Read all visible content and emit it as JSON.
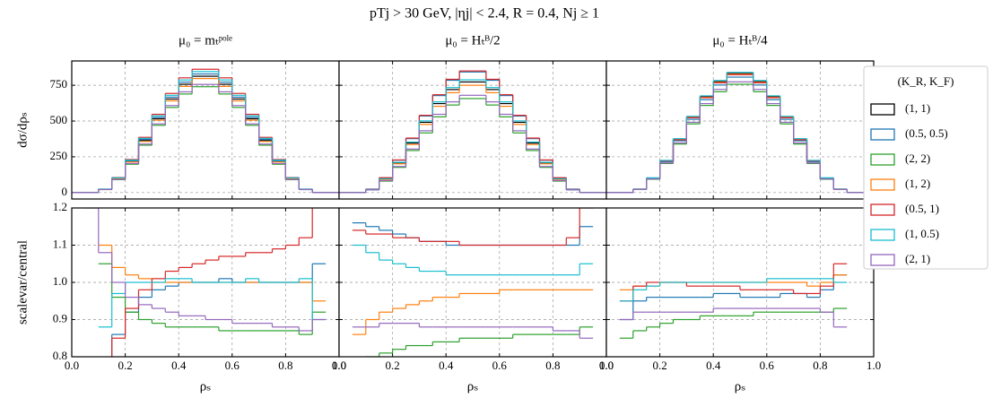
{
  "chart_data": {
    "type": "step",
    "title": "pTj > 30 GeV, |ηj| < 2.4, R = 0.4, Nj ≥ 1",
    "legend_title": "(K_R, K_F)",
    "series": [
      {
        "name": "(1, 1)",
        "color": "#000000"
      },
      {
        "name": "(0.5, 0.5)",
        "color": "#1f77b4"
      },
      {
        "name": "(2, 2)",
        "color": "#2ca02c"
      },
      {
        "name": "(1, 2)",
        "color": "#ff7f0e"
      },
      {
        "name": "(0.5, 1)",
        "color": "#d62728"
      },
      {
        "name": "(1, 0.5)",
        "color": "#17becf"
      },
      {
        "name": "(2, 1)",
        "color": "#9467bd"
      }
    ],
    "bins": [
      0,
      0.05,
      0.1,
      0.15,
      0.2,
      0.25,
      0.3,
      0.35,
      0.4,
      0.45,
      0.5,
      0.55,
      0.6,
      0.65,
      0.7,
      0.75,
      0.8,
      0.85,
      0.9,
      0.95,
      1
    ],
    "xlabel": "ρₛ",
    "xlim": [
      0,
      1
    ],
    "xticks": [
      {
        "value": 0,
        "label": "0.0"
      },
      0.2,
      0.4,
      0.6,
      0.8,
      {
        "value": 1,
        "label": "1.0"
      }
    ],
    "ylabel": "dσ/dρₛ",
    "ylim": [
      -45,
      920
    ],
    "yticks": [
      0,
      250,
      500,
      750
    ],
    "ratio_ylabel": "scalevar/central",
    "ratio_ylim": [
      0.8,
      1.2
    ],
    "ratio_yticks": [
      0.8,
      0.9,
      {
        "value": 1,
        "label": "1.0"
      },
      1.1,
      1.2
    ],
    "grid": true,
    "legend_position": "right",
    "panels": [
      {
        "title": "μ₀ = mₜᵖᵒˡᵉ",
        "values": [
          [
            0,
            0,
            23,
            99,
            218,
            364,
            516,
            654,
            757,
            813,
            813,
            757,
            654,
            516,
            364,
            218,
            99,
            23,
            0,
            0
          ],
          [
            0,
            0,
            23,
            101,
            222,
            371,
            526,
            667,
            772,
            829,
            829,
            772,
            667,
            526,
            371,
            222,
            101,
            23,
            0,
            0
          ],
          [
            0,
            0,
            21,
            90,
            198,
            331,
            470,
            595,
            689,
            740,
            740,
            689,
            595,
            470,
            331,
            198,
            90,
            21,
            0,
            0
          ],
          [
            0,
            0,
            23,
            97,
            214,
            357,
            506,
            641,
            742,
            797,
            797,
            742,
            641,
            506,
            357,
            214,
            97,
            23,
            0,
            0
          ],
          [
            0,
            0,
            24,
            105,
            231,
            386,
            547,
            693,
            802,
            862,
            862,
            802,
            693,
            547,
            386,
            231,
            105,
            24,
            0,
            0
          ],
          [
            0,
            0,
            24,
            103,
            227,
            379,
            537,
            680,
            787,
            846,
            846,
            787,
            680,
            537,
            379,
            227,
            103,
            24,
            0,
            0
          ],
          [
            0,
            0,
            21,
            92,
            203,
            339,
            480,
            608,
            704,
            756,
            756,
            704,
            608,
            480,
            339,
            203,
            92,
            21,
            0,
            0
          ]
        ],
        "ratio": [
          null,
          [
            null,
            null,
            0.78,
            0.86,
            0.92,
            0.96,
            0.98,
            0.99,
            1.0,
            1.0,
            1.0,
            1.01,
            1.0,
            1.0,
            1.0,
            1.0,
            1.0,
            1.0,
            1.05,
            null
          ],
          [
            null,
            null,
            1.05,
            0.96,
            0.92,
            0.9,
            0.89,
            0.88,
            0.88,
            0.88,
            0.88,
            0.87,
            0.87,
            0.87,
            0.87,
            0.87,
            0.87,
            0.86,
            0.92,
            null
          ],
          [
            null,
            null,
            1.1,
            1.04,
            1.02,
            1.01,
            1.0,
            1.0,
            1.0,
            1.0,
            1.0,
            1.0,
            1.0,
            1.0,
            1.0,
            1.0,
            1.0,
            1.0,
            0.95,
            null
          ],
          [
            null,
            null,
            0.75,
            0.85,
            0.93,
            0.98,
            1.01,
            1.03,
            1.04,
            1.05,
            1.06,
            1.07,
            1.07,
            1.08,
            1.08,
            1.09,
            1.1,
            1.12,
            1.25,
            null
          ],
          [
            null,
            null,
            0.88,
            0.97,
            1.0,
            1.0,
            1.0,
            1.01,
            1.01,
            1.0,
            1.0,
            1.0,
            1.0,
            1.01,
            1.0,
            1.0,
            1.0,
            1.01,
            0.9,
            null
          ],
          [
            null,
            1.2,
            1.08,
            1.0,
            0.96,
            0.94,
            0.93,
            0.92,
            0.91,
            0.91,
            0.9,
            0.9,
            0.89,
            0.89,
            0.89,
            0.88,
            0.88,
            0.87,
            0.9,
            null
          ]
        ]
      },
      {
        "title": "μ₀ = Hₜᴮ/2",
        "values": [
          [
            0,
            0,
            22,
            94,
            207,
            346,
            491,
            622,
            720,
            773,
            773,
            720,
            622,
            491,
            346,
            207,
            94,
            22,
            0,
            0
          ],
          [
            0,
            0,
            24,
            102,
            226,
            377,
            535,
            678,
            785,
            843,
            843,
            785,
            678,
            535,
            377,
            226,
            102,
            24,
            0,
            0
          ],
          [
            0,
            0,
            19,
            80,
            176,
            294,
            417,
            529,
            612,
            657,
            657,
            612,
            529,
            417,
            294,
            176,
            80,
            19,
            0,
            0
          ],
          [
            0,
            0,
            21,
            91,
            201,
            336,
            476,
            603,
            698,
            750,
            750,
            698,
            603,
            476,
            336,
            201,
            91,
            21,
            0,
            0
          ],
          [
            0,
            0,
            24,
            104,
            228,
            381,
            540,
            684,
            792,
            850,
            850,
            792,
            684,
            540,
            381,
            228,
            104,
            24,
            0,
            0
          ],
          [
            0,
            0,
            22,
            96,
            211,
            353,
            501,
            634,
            734,
            788,
            788,
            734,
            634,
            501,
            353,
            211,
            96,
            22,
            0,
            0
          ],
          [
            0,
            0,
            19,
            83,
            182,
            304,
            432,
            547,
            634,
            680,
            680,
            634,
            547,
            432,
            304,
            182,
            83,
            19,
            0,
            0
          ]
        ],
        "ratio": [
          null,
          [
            null,
            1.16,
            1.15,
            1.14,
            1.13,
            1.12,
            1.11,
            1.11,
            1.1,
            1.1,
            1.1,
            1.1,
            1.1,
            1.1,
            1.1,
            1.1,
            1.1,
            1.1,
            1.15,
            null
          ],
          [
            null,
            0.78,
            0.8,
            0.81,
            0.82,
            0.83,
            0.83,
            0.84,
            0.84,
            0.85,
            0.85,
            0.85,
            0.85,
            0.86,
            0.86,
            0.86,
            0.86,
            0.86,
            0.88,
            null
          ],
          [
            null,
            0.86,
            0.9,
            0.92,
            0.93,
            0.94,
            0.95,
            0.96,
            0.96,
            0.97,
            0.97,
            0.97,
            0.98,
            0.98,
            0.98,
            0.98,
            0.98,
            0.98,
            0.98,
            null
          ],
          [
            null,
            1.14,
            1.13,
            1.13,
            1.12,
            1.12,
            1.11,
            1.11,
            1.11,
            1.1,
            1.1,
            1.1,
            1.1,
            1.1,
            1.1,
            1.1,
            1.1,
            1.12,
            1.2,
            null
          ],
          [
            null,
            1.1,
            1.08,
            1.06,
            1.05,
            1.04,
            1.03,
            1.03,
            1.02,
            1.02,
            1.02,
            1.02,
            1.02,
            1.02,
            1.02,
            1.02,
            1.02,
            1.02,
            1.05,
            null
          ],
          [
            null,
            0.88,
            0.88,
            0.89,
            0.89,
            0.89,
            0.88,
            0.88,
            0.88,
            0.88,
            0.88,
            0.88,
            0.88,
            0.88,
            0.88,
            0.88,
            0.87,
            0.87,
            0.85,
            null
          ]
        ]
      },
      {
        "title": "μ₀ = Hₜᴮ/4",
        "values": [
          [
            0,
            0,
            24,
            102,
            223,
            373,
            528,
            669,
            775,
            832,
            832,
            775,
            669,
            528,
            373,
            223,
            102,
            24,
            0,
            0
          ],
          [
            0,
            0,
            23,
            99,
            216,
            362,
            512,
            649,
            752,
            807,
            807,
            752,
            649,
            512,
            362,
            216,
            99,
            23,
            0,
            0
          ],
          [
            0,
            0,
            22,
            93,
            203,
            339,
            480,
            609,
            705,
            757,
            757,
            705,
            609,
            480,
            339,
            203,
            93,
            22,
            0,
            0
          ],
          [
            0,
            0,
            24,
            101,
            222,
            371,
            526,
            666,
            771,
            828,
            828,
            771,
            666,
            526,
            371,
            222,
            101,
            24,
            0,
            0
          ],
          [
            0,
            0,
            23,
            101,
            221,
            369,
            523,
            663,
            767,
            824,
            824,
            767,
            663,
            523,
            369,
            221,
            101,
            23,
            0,
            0
          ],
          [
            0,
            0,
            24,
            103,
            225,
            377,
            533,
            676,
            783,
            840,
            840,
            783,
            676,
            533,
            377,
            225,
            103,
            24,
            0,
            0
          ],
          [
            0,
            0,
            22,
            95,
            207,
            347,
            491,
            622,
            721,
            774,
            774,
            721,
            622,
            491,
            347,
            207,
            95,
            22,
            0,
            0
          ]
        ],
        "ratio": [
          null,
          [
            null,
            0.9,
            0.95,
            0.96,
            0.96,
            0.96,
            0.96,
            0.96,
            0.97,
            0.97,
            0.96,
            0.96,
            0.96,
            0.97,
            0.97,
            0.96,
            0.98,
            1.02,
            null,
            null
          ],
          [
            null,
            0.85,
            0.87,
            0.88,
            0.89,
            0.9,
            0.9,
            0.91,
            0.91,
            0.91,
            0.91,
            0.92,
            0.92,
            0.92,
            0.92,
            0.92,
            0.92,
            0.93,
            null,
            null
          ],
          [
            null,
            0.98,
            0.99,
            0.99,
            1.0,
            1.0,
            1.0,
            1.0,
            1.0,
            1.0,
            1.0,
            1.0,
            1.0,
            1.0,
            1.0,
            0.99,
            1.0,
            1.02,
            null,
            null
          ],
          [
            null,
            0.95,
            0.99,
            1.0,
            1.0,
            1.0,
            0.99,
            0.99,
            0.99,
            0.99,
            0.98,
            0.98,
            0.98,
            0.98,
            0.97,
            0.97,
            0.99,
            1.05,
            null,
            null
          ],
          [
            null,
            0.95,
            0.98,
            0.99,
            1.0,
            1.0,
            1.0,
            1.0,
            1.0,
            1.0,
            1.0,
            1.0,
            1.01,
            1.01,
            1.01,
            1.01,
            1.01,
            1.0,
            null,
            null
          ],
          [
            null,
            0.9,
            0.92,
            0.92,
            0.92,
            0.92,
            0.92,
            0.92,
            0.93,
            0.93,
            0.93,
            0.93,
            0.93,
            0.93,
            0.93,
            0.93,
            0.92,
            0.88,
            null,
            null
          ]
        ]
      }
    ]
  }
}
